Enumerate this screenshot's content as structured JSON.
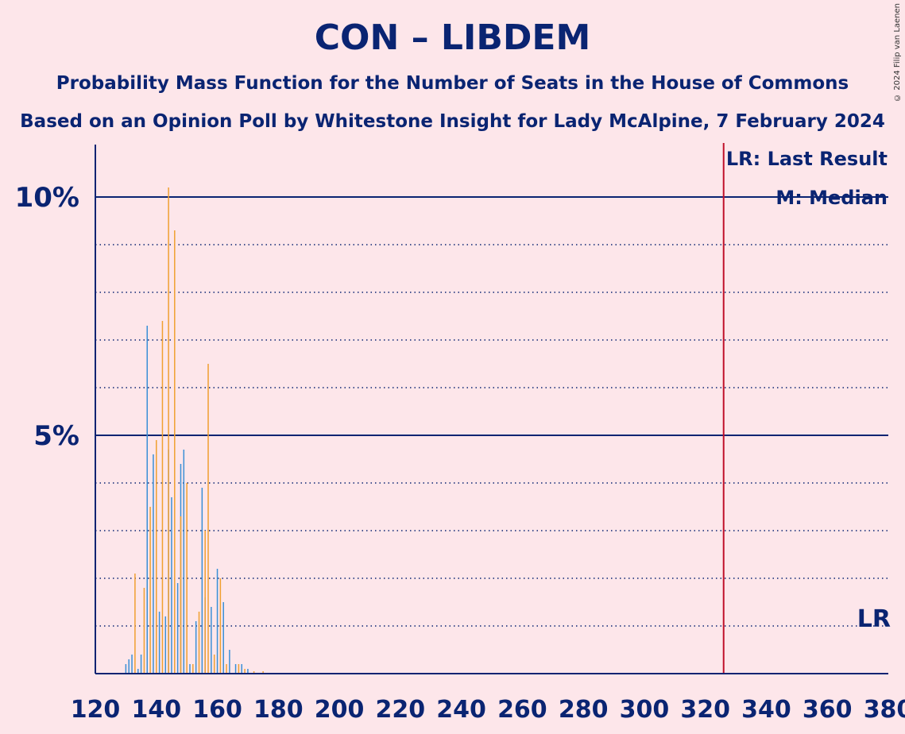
{
  "header": {
    "title": "CON – LIBDEM",
    "subtitle1": "Probability Mass Function for the Number of Seats in the House of Commons",
    "subtitle2": "Based on an Opinion Poll by Whitestone Insight for Lady McAlpine, 7 February 2024",
    "credit": "© 2024 Filip van Laenen"
  },
  "legend": {
    "last_result": "LR: Last Result",
    "median": "M: Median",
    "lr_marker": "LR"
  },
  "colors": {
    "background": "#fde6ea",
    "axis": "#0a2472",
    "series_a": "#3a8fd6",
    "series_b": "#f0a030",
    "last_result_line": "#c0102a"
  },
  "chart_data": {
    "type": "bar",
    "xlim": [
      120,
      380
    ],
    "ylim": [
      0,
      11
    ],
    "x_ticks": [
      120,
      140,
      160,
      180,
      200,
      220,
      240,
      260,
      280,
      300,
      320,
      340,
      360,
      380
    ],
    "y_tick_labels": [
      {
        "value": 5,
        "label": "5%"
      },
      {
        "value": 10,
        "label": "10%"
      }
    ],
    "y_dotted_lines": [
      1,
      2,
      3,
      4,
      6,
      7,
      8,
      9
    ],
    "last_result": 326,
    "series": [
      {
        "values": [
          [
            130,
            0.2
          ],
          [
            131,
            0.3
          ],
          [
            132,
            0.4
          ],
          [
            134,
            0.1
          ],
          [
            135,
            0.4
          ],
          [
            137,
            7.3
          ],
          [
            139,
            4.6
          ],
          [
            141,
            1.3
          ],
          [
            143,
            1.2
          ],
          [
            144,
            4.7
          ],
          [
            145,
            3.7
          ],
          [
            147,
            1.9
          ],
          [
            148,
            4.4
          ],
          [
            149,
            4.7
          ],
          [
            151,
            0.2
          ],
          [
            153,
            1.1
          ],
          [
            155,
            3.9
          ],
          [
            156,
            1.6
          ],
          [
            158,
            1.4
          ],
          [
            160,
            2.2
          ],
          [
            162,
            1.5
          ],
          [
            164,
            0.5
          ],
          [
            166,
            0.2
          ],
          [
            168,
            0.2
          ],
          [
            170,
            0.1
          ]
        ]
      },
      {
        "values": [
          [
            133,
            2.1
          ],
          [
            136,
            1.8
          ],
          [
            138,
            3.5
          ],
          [
            140,
            4.9
          ],
          [
            142,
            7.4
          ],
          [
            144,
            10.2
          ],
          [
            146,
            9.3
          ],
          [
            148,
            3.3
          ],
          [
            150,
            4.0
          ],
          [
            152,
            0.2
          ],
          [
            154,
            1.3
          ],
          [
            156,
            3.0
          ],
          [
            157,
            6.5
          ],
          [
            159,
            0.4
          ],
          [
            161,
            2.0
          ],
          [
            163,
            0.2
          ],
          [
            167,
            0.2
          ],
          [
            169,
            0.1
          ],
          [
            172,
            0.05
          ],
          [
            175,
            0.05
          ]
        ]
      }
    ]
  }
}
